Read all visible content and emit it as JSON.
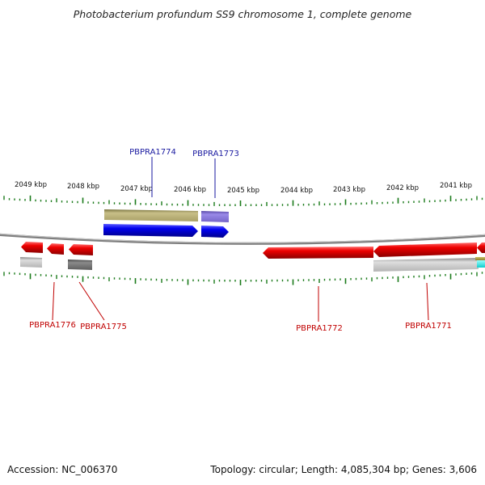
{
  "title": "Photobacterium profundum SS9 chromosome 1, complete genome",
  "footer": {
    "accession": "Accession: NC_006370",
    "summary": "Topology: circular; Length: 4,085,304 bp; Genes: 3,606"
  },
  "colors": {
    "background": "#ffffff",
    "backbone": "#7f7f7f",
    "tick": "#1a7a1a",
    "forward_gene": "#0000ee",
    "reverse_gene": "#ee0000",
    "forward_label": "#1a1aa0",
    "reverse_label": "#c00000",
    "khaki_feature": "#b9b07a",
    "lavender_feature": "#8878d8",
    "light_gray_feature": "#bdbdbd",
    "dark_gray_feature": "#6f6f6f",
    "cyan_feature": "#22e8e8"
  },
  "chart_data": {
    "type": "genome_map",
    "position_labels": [
      "2049 kbp",
      "2048 kbp",
      "2047 kbp",
      "2046 kbp",
      "2045 kbp",
      "2044 kbp",
      "2043 kbp",
      "2042 kbp",
      "2041 kbp"
    ],
    "genes": [
      {
        "label": "PBPRA1774",
        "strand": "forward"
      },
      {
        "label": "PBPRA1773",
        "strand": "forward"
      },
      {
        "label": "PBPRA1776",
        "strand": "reverse"
      },
      {
        "label": "PBPRA1775",
        "strand": "reverse"
      },
      {
        "label": "PBPRA1772",
        "strand": "reverse"
      },
      {
        "label": "PBPRA1771",
        "strand": "reverse"
      }
    ]
  }
}
